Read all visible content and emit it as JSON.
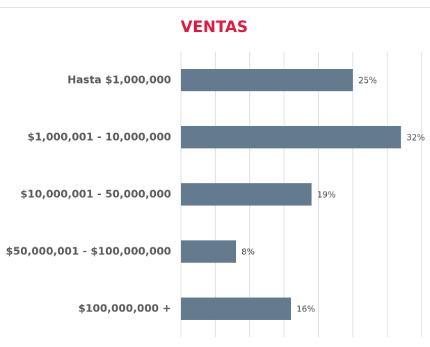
{
  "chart_data": {
    "type": "bar",
    "orientation": "horizontal",
    "title": "VENTAS",
    "categories": [
      "Hasta $1,000,000",
      "$1,000,001 - 10,000,000",
      "$10,000,001 - 50,000,000",
      "$50,000,001 - $100,000,000",
      "$100,000,000 +"
    ],
    "values": [
      25,
      32,
      19,
      8,
      16
    ],
    "value_labels": [
      "25%",
      "32%",
      "19%",
      "8%",
      "16%"
    ],
    "color": "#647a8e",
    "title_color": "#e0173f",
    "xlim": [
      0,
      35
    ],
    "xticks": [
      0,
      5,
      10,
      15,
      20,
      25,
      30,
      35
    ],
    "grid": true
  }
}
